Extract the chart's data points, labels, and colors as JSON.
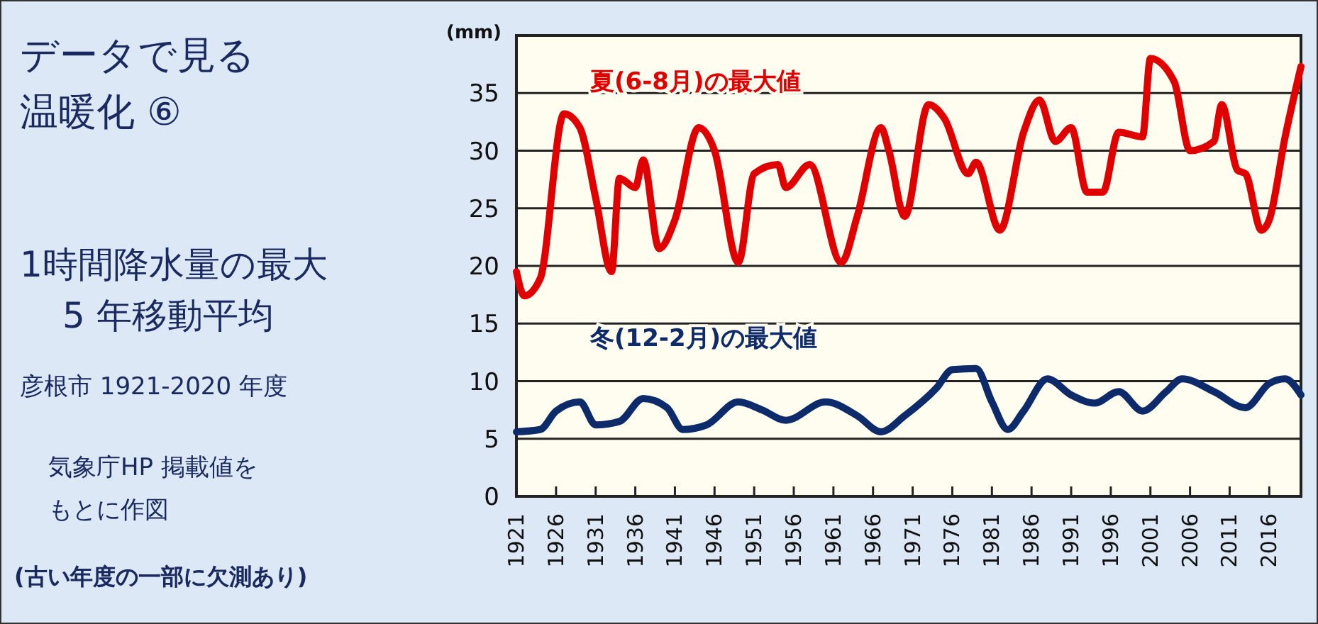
{
  "chart_data": {
    "type": "line",
    "title": "データで見る温暖化 ⑥",
    "subtitle": "1時間降水量の最大\n5 年移動平均",
    "ylabel": "(mm)",
    "annotations": [
      "彦根市 1921-2020 年度",
      "気象庁HP 掲載値をもとに作図",
      "(古い年度の一部に欠測あり)"
    ],
    "xlim": [
      1921,
      2020
    ],
    "xticks": [
      1921,
      1926,
      1931,
      1936,
      1941,
      1946,
      1951,
      1956,
      1961,
      1966,
      1971,
      1976,
      1981,
      1986,
      1991,
      1996,
      2001,
      2006,
      2011,
      2016
    ],
    "ylim": [
      0,
      40
    ],
    "yticks": [
      0,
      5,
      10,
      15,
      20,
      25,
      30,
      35
    ],
    "grid": "y",
    "marker": "none",
    "line_style": "solid",
    "series": [
      {
        "name": "夏(6-8月)の最大値",
        "color": "#e00000",
        "x": [
          1921,
          1922,
          1924,
          1927,
          1929,
          1931,
          1933,
          1934,
          1936,
          1937,
          1939,
          1941,
          1944,
          1946,
          1949,
          1951,
          1954,
          1955,
          1958,
          1962,
          1964,
          1967,
          1968,
          1970,
          1973,
          1975,
          1978,
          1979,
          1982,
          1985,
          1987,
          1989,
          1991,
          1993,
          1995,
          1997,
          2000,
          2001,
          2004,
          2006,
          2009,
          2010,
          2012,
          2013,
          2015,
          2016,
          2018,
          2020
        ],
        "values": [
          19.5,
          17.4,
          18.9,
          33.2,
          32,
          25.9,
          19.5,
          27.6,
          26.8,
          29.2,
          21.5,
          24,
          32,
          30,
          20.3,
          28,
          28.8,
          26.8,
          28.8,
          20.3,
          24.3,
          32,
          30,
          24.3,
          34,
          32.8,
          28,
          29,
          23.1,
          31.6,
          34.4,
          30.8,
          32,
          26.4,
          26.4,
          31.6,
          31.2,
          38,
          36,
          30,
          30.8,
          34,
          28.3,
          28,
          23.1,
          24,
          31.2,
          37.3
        ]
      },
      {
        "name": "冬(12-2月)の最大値",
        "color": "#0d2a6b",
        "x": [
          1921,
          1924,
          1926,
          1929,
          1931,
          1934,
          1937,
          1940,
          1942,
          1945,
          1949,
          1952,
          1955,
          1960,
          1964,
          1967,
          1970,
          1974,
          1976,
          1979,
          1981,
          1983,
          1985,
          1988,
          1991,
          1994,
          1997,
          2000,
          2003,
          2005,
          2009,
          2013,
          2016,
          2018,
          2020
        ],
        "values": [
          5.6,
          5.8,
          7.4,
          8.2,
          6.2,
          6.5,
          8.5,
          7.7,
          5.8,
          6.2,
          8.2,
          7.5,
          6.6,
          8.2,
          7,
          5.6,
          7,
          9.4,
          11,
          11.1,
          8.2,
          5.8,
          7.4,
          10.2,
          8.8,
          8.1,
          9.1,
          7.4,
          9.1,
          10.2,
          9.1,
          7.7,
          9.8,
          10.2,
          8.8
        ]
      }
    ]
  }
}
